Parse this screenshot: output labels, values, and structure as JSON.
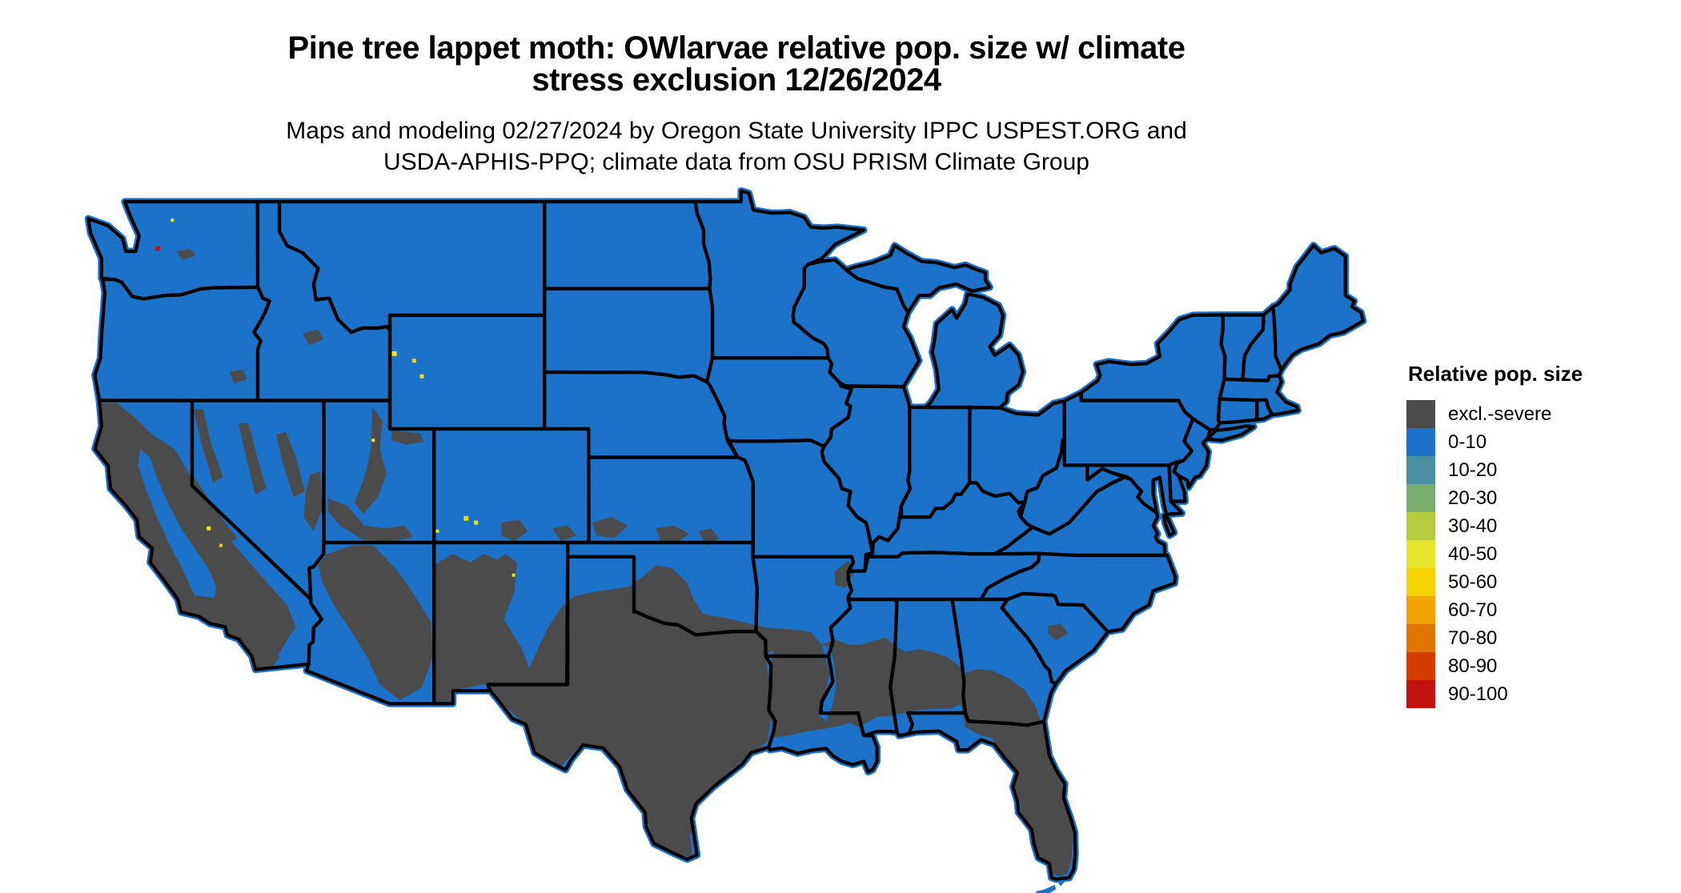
{
  "header": {
    "title_line1": "Pine tree lappet moth: OWlarvae relative pop. size w/ climate",
    "title_line2": "stress exclusion 12/26/2024",
    "subtitle_line1": "Maps and modeling 02/27/2024 by Oregon State University IPPC USPEST.ORG and",
    "subtitle_line2": "USDA-APHIS-PPQ; climate data from OSU PRISM Climate Group"
  },
  "legend": {
    "title": "Relative pop. size",
    "items": [
      {
        "label": "excl.-severe",
        "color": "#4b4b4b"
      },
      {
        "label": "0-10",
        "color": "#1c72c9"
      },
      {
        "label": "10-20",
        "color": "#4b8fa3"
      },
      {
        "label": "20-30",
        "color": "#78ad6d"
      },
      {
        "label": "30-40",
        "color": "#b4cb3c"
      },
      {
        "label": "40-50",
        "color": "#e7e42c"
      },
      {
        "label": "50-60",
        "color": "#f5d300"
      },
      {
        "label": "60-70",
        "color": "#f1a300"
      },
      {
        "label": "70-80",
        "color": "#e27500"
      },
      {
        "label": "80-90",
        "color": "#d43c00"
      },
      {
        "label": "90-100",
        "color": "#c31010"
      }
    ]
  },
  "map": {
    "fill_default": "#1c72c9",
    "fill_excluded": "#4b4b4b",
    "border_color": "#000000",
    "background": "#ffffff",
    "speck_yellow": "#e7e42c",
    "speck_gold": "#f5d300",
    "speck_red": "#c31010"
  }
}
